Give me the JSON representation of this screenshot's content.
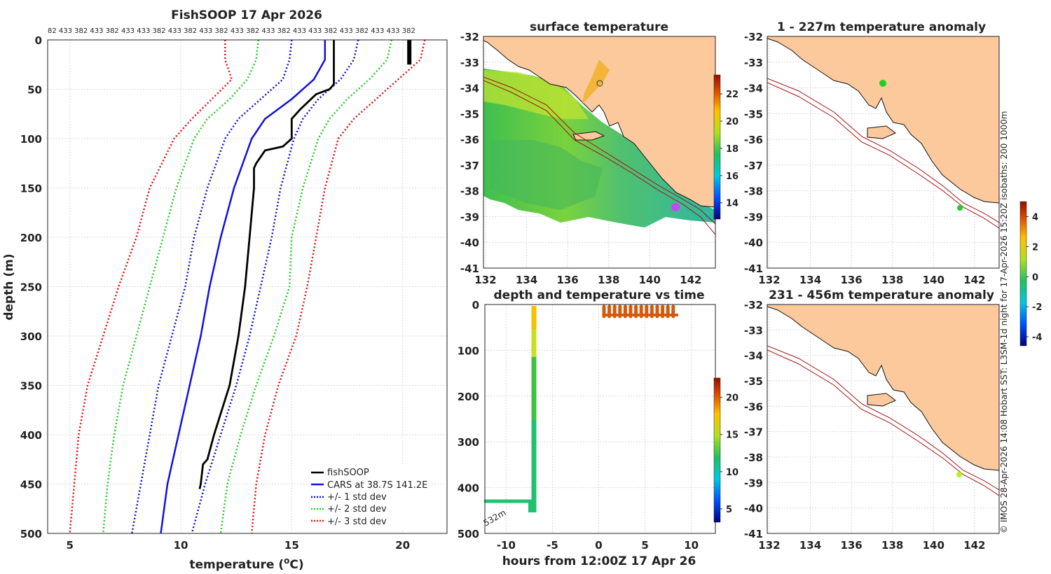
{
  "colors": {
    "fishsoop": "#000000",
    "cars": "#1010e0",
    "std1": "#1010d0",
    "std2": "#22cc22",
    "std3": "#e01010",
    "land": "#fbc99b",
    "isobath": "#a01010"
  },
  "profile_panel": {
    "title": "FishSOOP 17 Apr 2026",
    "top_labels": [
      "82",
      "433",
      "382",
      "433",
      "382",
      "433",
      "433",
      "382",
      "433",
      "382",
      "433",
      "382",
      "433",
      "382",
      "433",
      "382",
      "433",
      "433",
      "382",
      "433",
      "382",
      "433",
      "433",
      "382"
    ],
    "chart_data": {
      "type": "line",
      "xlabel_main": "temperature (",
      "xlabel_sup": "o",
      "xlabel_tail": "C)",
      "ylabel": "depth (m)",
      "xlim": [
        4,
        22
      ],
      "ylim": [
        500,
        0
      ],
      "xticks": [
        "5",
        "10",
        "15",
        "20"
      ],
      "yticks": [
        "0",
        "50",
        "100",
        "150",
        "200",
        "250",
        "300",
        "350",
        "400",
        "450",
        "500"
      ],
      "series": [
        {
          "name": "fishSOOP",
          "depth": [
            0,
            45,
            50,
            55,
            70,
            80,
            100,
            108,
            112,
            125,
            130,
            150,
            200,
            250,
            300,
            350,
            400,
            425,
            430,
            450,
            455
          ],
          "temp": [
            16.9,
            16.9,
            16.7,
            16.1,
            15.4,
            15.0,
            15.0,
            14.6,
            13.8,
            13.4,
            13.3,
            13.3,
            13.1,
            12.9,
            12.6,
            12.2,
            11.5,
            11.2,
            11.0,
            10.9,
            10.85
          ]
        },
        {
          "name": "CARS at 38.7S 141.2E",
          "depth": [
            0,
            20,
            40,
            60,
            80,
            100,
            150,
            200,
            250,
            300,
            350,
            400,
            450,
            500
          ],
          "temp": [
            16.5,
            16.5,
            16.0,
            15.0,
            13.8,
            13.2,
            12.4,
            11.8,
            11.3,
            10.9,
            10.4,
            9.9,
            9.4,
            9.1
          ]
        },
        {
          "name": "+/- 1 std dev",
          "depth": [
            0,
            20,
            40,
            60,
            80,
            100,
            150,
            200,
            250,
            300,
            350,
            400,
            450,
            500
          ],
          "temp_lo": [
            15.0,
            14.9,
            14.6,
            13.6,
            12.6,
            12.0,
            11.2,
            10.6,
            10.2,
            9.6,
            9.0,
            8.6,
            8.2,
            7.8
          ],
          "temp_hi": [
            18.0,
            17.8,
            17.2,
            16.2,
            15.5,
            15.1,
            14.5,
            14.1,
            13.6,
            13.1,
            12.5,
            11.8,
            11.1,
            10.5
          ]
        },
        {
          "name": "+/- 2 std dev",
          "depth": [
            0,
            20,
            40,
            60,
            80,
            100,
            150,
            200,
            250,
            300,
            350,
            400,
            450,
            500
          ],
          "temp_lo": [
            13.5,
            13.4,
            13.0,
            12.2,
            11.2,
            10.6,
            9.8,
            9.2,
            8.6,
            8.0,
            7.4,
            7.0,
            6.7,
            6.5
          ],
          "temp_hi": [
            19.5,
            19.3,
            18.5,
            17.5,
            16.7,
            16.2,
            15.5,
            15.0,
            14.9,
            14.2,
            13.4,
            12.7,
            12.1,
            11.8
          ]
        },
        {
          "name": "+/- 3 std dev",
          "depth": [
            0,
            20,
            40,
            60,
            80,
            100,
            150,
            200,
            250,
            300,
            350,
            400,
            450,
            500
          ],
          "temp_lo": [
            12.0,
            12.0,
            12.3,
            11.4,
            10.5,
            9.7,
            8.6,
            8.0,
            7.2,
            6.5,
            5.8,
            5.4,
            5.2,
            5.0
          ],
          "temp_hi": [
            21.0,
            20.8,
            19.8,
            18.8,
            17.8,
            17.1,
            16.5,
            16.1,
            15.7,
            15.2,
            14.4,
            13.8,
            13.4,
            13.2
          ]
        }
      ],
      "legend": [
        "fishSOOP",
        "CARS at 38.7S 141.2E",
        "+/- 1 std dev",
        "+/- 2 std dev",
        "+/- 3 std dev"
      ]
    }
  },
  "surface_panel": {
    "title": "surface temperature",
    "xticks": [
      "132",
      "134",
      "136",
      "138",
      "140",
      "142"
    ],
    "yticks": [
      "-32",
      "-33",
      "-34",
      "-35",
      "-36",
      "-37",
      "-38",
      "-39",
      "-40",
      "-41"
    ],
    "colorbar_ticks": [
      "22",
      "20",
      "18",
      "16",
      "14"
    ]
  },
  "time_panel": {
    "title": "depth and temperature vs time",
    "xlabel": "hours from 12:00Z 17 Apr 26",
    "xticks": [
      "-10",
      "-5",
      "0",
      "5",
      "10"
    ],
    "yticks": [
      "0",
      "100",
      "200",
      "300",
      "400",
      "500"
    ],
    "annotation": "532m",
    "colorbar_ticks": [
      "20",
      "15",
      "10",
      "5"
    ]
  },
  "anom1_panel": {
    "title": "1 - 227m temperature anomaly",
    "xticks": [
      "132",
      "134",
      "136",
      "138",
      "140",
      "142"
    ],
    "yticks": [
      "-32",
      "-33",
      "-34",
      "-35",
      "-36",
      "-37",
      "-38",
      "-39",
      "-40",
      "-41"
    ]
  },
  "anom2_panel": {
    "title": "231 - 456m temperature anomaly",
    "xticks": [
      "132",
      "134",
      "136",
      "138",
      "140",
      "142"
    ],
    "yticks": [
      "-32",
      "-33",
      "-34",
      "-35",
      "-36",
      "-37",
      "-38",
      "-39",
      "-40",
      "-41"
    ]
  },
  "anom_colorbar_ticks": [
    "4",
    "2",
    "0",
    "-2",
    "-4"
  ],
  "side_note": "© IMOS 28-Apr-2026 14:08 Hobart SST: L3SM-1d night for 17-Apr-2026 15:20Z isobaths: 200  1000m"
}
